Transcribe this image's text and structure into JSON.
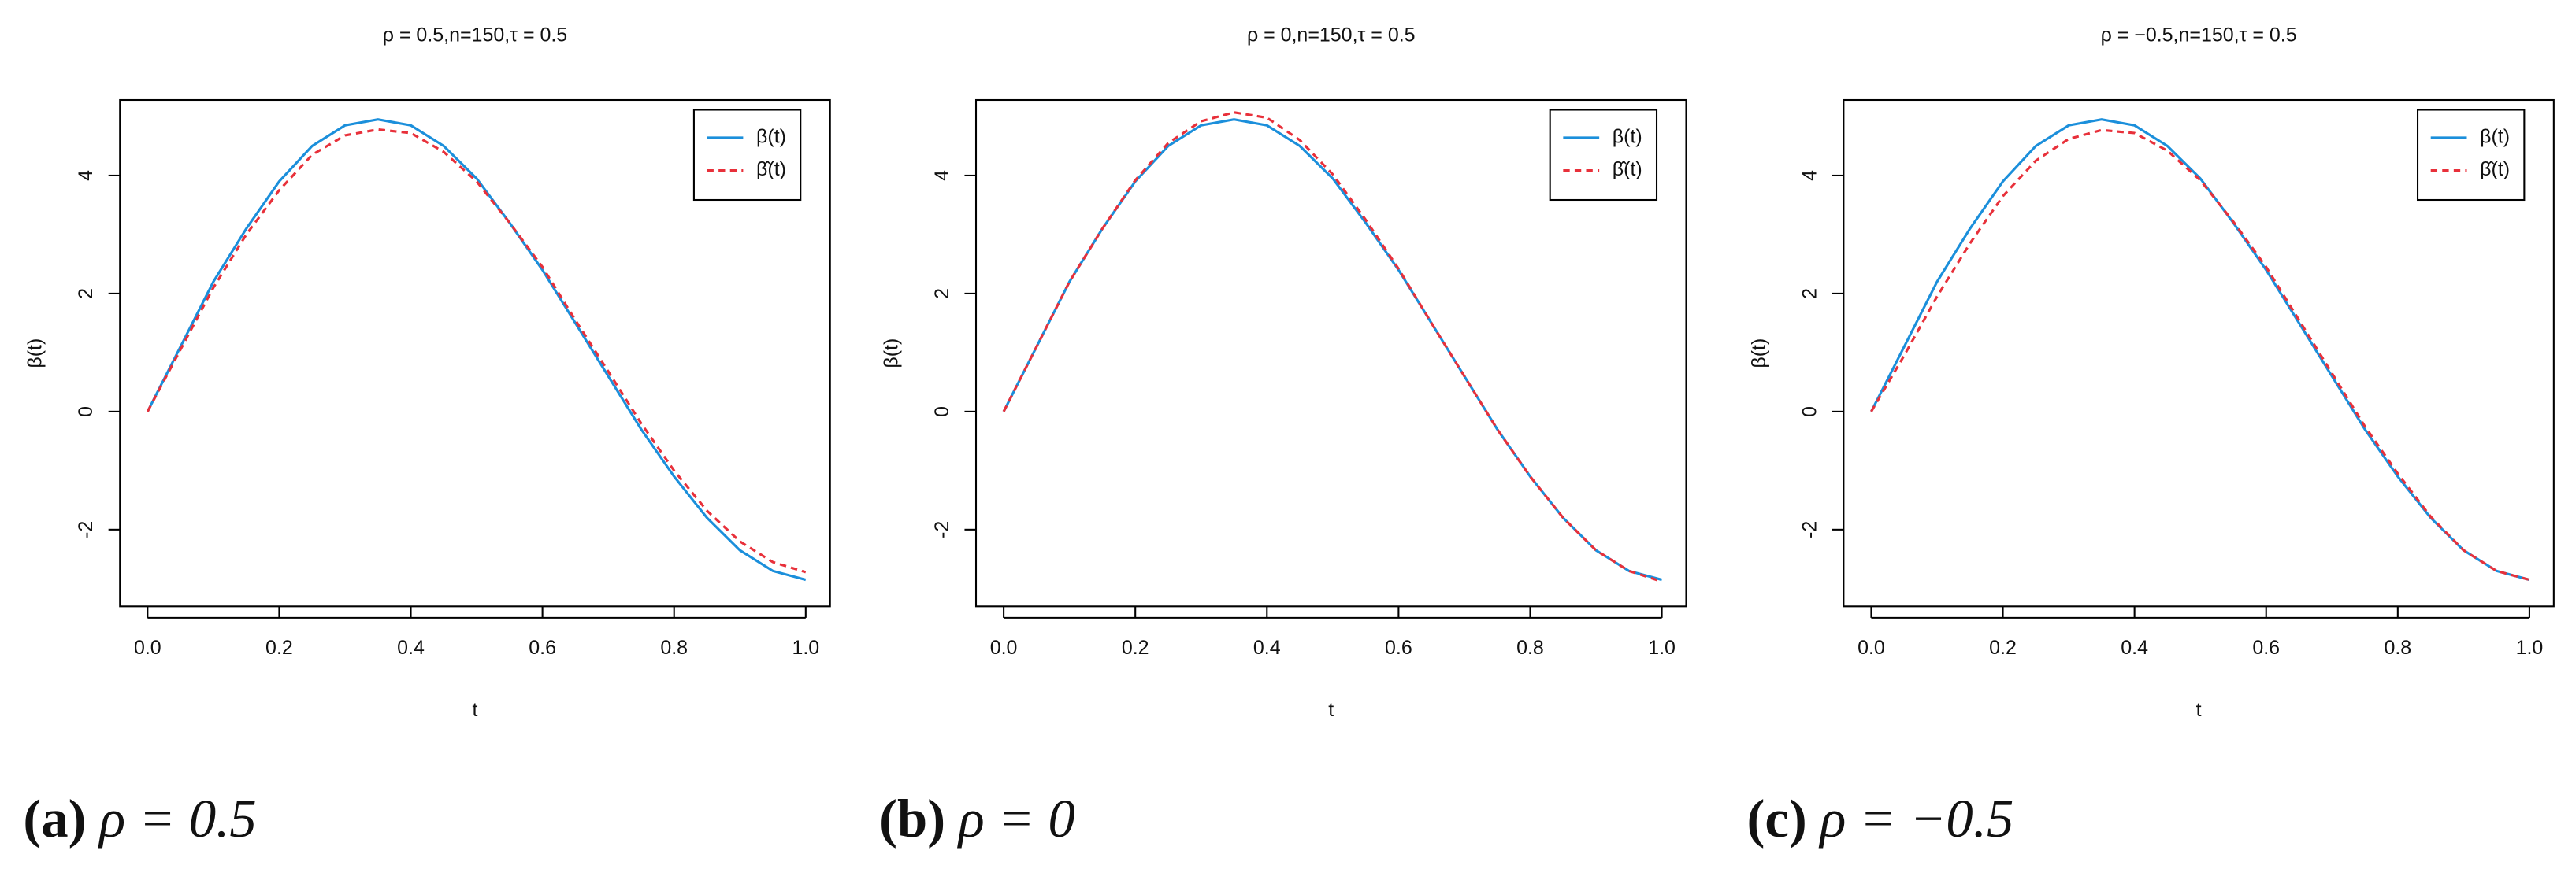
{
  "chart_data": [
    {
      "type": "line",
      "title": "ρ = 0.5,n=150,τ = 0.5",
      "xlabel": "t",
      "ylabel": "β(t)",
      "caption_tag": "(a)",
      "caption_text": "ρ = 0.5",
      "x": [
        0,
        0.05,
        0.1,
        0.15,
        0.2,
        0.25,
        0.3,
        0.35,
        0.4,
        0.45,
        0.5,
        0.55,
        0.6,
        0.65,
        0.7,
        0.75,
        0.8,
        0.85,
        0.9,
        0.95,
        1.0
      ],
      "series": [
        {
          "name": "β(t)",
          "color": "#1b8fdb",
          "dash": false,
          "values": [
            0,
            1.1,
            2.2,
            3.1,
            3.9,
            4.5,
            4.85,
            4.95,
            4.85,
            4.5,
            3.95,
            3.2,
            2.4,
            1.5,
            0.6,
            -0.3,
            -1.1,
            -1.8,
            -2.35,
            -2.7,
            -2.85
          ]
        },
        {
          "name": "β̂(t)",
          "color": "#e8303a",
          "dash": true,
          "values": [
            0,
            1.05,
            2.1,
            3.0,
            3.75,
            4.35,
            4.68,
            4.78,
            4.72,
            4.4,
            3.9,
            3.2,
            2.45,
            1.55,
            0.68,
            -0.2,
            -1.0,
            -1.68,
            -2.2,
            -2.55,
            -2.72
          ]
        }
      ],
      "xlim": [
        -0.042,
        1.037
      ],
      "ylim": [
        -3.3,
        5.28
      ],
      "xticks": [
        {
          "value": 0,
          "label": "0.0"
        },
        0.2,
        0.4,
        0.6,
        0.8,
        {
          "value": 1,
          "label": "1.0"
        }
      ],
      "yticks": [
        -2,
        0,
        2,
        4
      ],
      "legend": "upper right"
    },
    {
      "type": "line",
      "title": "ρ = 0,n=150,τ = 0.5",
      "xlabel": "t",
      "ylabel": "β(t)",
      "caption_tag": "(b)",
      "caption_text": "ρ = 0",
      "x": [
        0,
        0.05,
        0.1,
        0.15,
        0.2,
        0.25,
        0.3,
        0.35,
        0.4,
        0.45,
        0.5,
        0.55,
        0.6,
        0.65,
        0.7,
        0.75,
        0.8,
        0.85,
        0.9,
        0.95,
        1.0
      ],
      "series": [
        {
          "name": "β(t)",
          "color": "#1b8fdb",
          "dash": false,
          "values": [
            0,
            1.1,
            2.2,
            3.1,
            3.9,
            4.5,
            4.85,
            4.95,
            4.85,
            4.5,
            3.95,
            3.2,
            2.4,
            1.5,
            0.6,
            -0.3,
            -1.1,
            -1.8,
            -2.35,
            -2.7,
            -2.85
          ]
        },
        {
          "name": "β̂(t)",
          "color": "#e8303a",
          "dash": true,
          "values": [
            0,
            1.1,
            2.2,
            3.1,
            3.92,
            4.55,
            4.92,
            5.07,
            4.98,
            4.6,
            4.02,
            3.25,
            2.42,
            1.5,
            0.6,
            -0.3,
            -1.1,
            -1.8,
            -2.35,
            -2.7,
            -2.88
          ]
        }
      ],
      "xlim": [
        -0.042,
        1.037
      ],
      "ylim": [
        -3.3,
        5.28
      ],
      "xticks": [
        {
          "value": 0,
          "label": "0.0"
        },
        0.2,
        0.4,
        0.6,
        0.8,
        {
          "value": 1,
          "label": "1.0"
        }
      ],
      "yticks": [
        -2,
        0,
        2,
        4
      ],
      "legend": "upper right"
    },
    {
      "type": "line",
      "title": "ρ = −0.5,n=150,τ = 0.5",
      "xlabel": "t",
      "ylabel": "β(t)",
      "caption_tag": "(c)",
      "caption_text": "ρ = −0.5",
      "x": [
        0,
        0.05,
        0.1,
        0.15,
        0.2,
        0.25,
        0.3,
        0.35,
        0.4,
        0.45,
        0.5,
        0.55,
        0.6,
        0.65,
        0.7,
        0.75,
        0.8,
        0.85,
        0.9,
        0.95,
        1.0
      ],
      "series": [
        {
          "name": "β(t)",
          "color": "#1b8fdb",
          "dash": false,
          "values": [
            0,
            1.1,
            2.2,
            3.1,
            3.9,
            4.5,
            4.85,
            4.95,
            4.85,
            4.5,
            3.95,
            3.2,
            2.4,
            1.5,
            0.6,
            -0.3,
            -1.1,
            -1.8,
            -2.35,
            -2.7,
            -2.85
          ]
        },
        {
          "name": "β̂(t)",
          "color": "#e8303a",
          "dash": true,
          "values": [
            0,
            0.95,
            1.95,
            2.85,
            3.65,
            4.25,
            4.62,
            4.77,
            4.72,
            4.42,
            3.92,
            3.22,
            2.45,
            1.55,
            0.65,
            -0.25,
            -1.05,
            -1.78,
            -2.35,
            -2.7,
            -2.85
          ]
        }
      ],
      "xlim": [
        -0.042,
        1.037
      ],
      "ylim": [
        -3.3,
        5.28
      ],
      "xticks": [
        {
          "value": 0,
          "label": "0.0"
        },
        0.2,
        0.4,
        0.6,
        0.8,
        {
          "value": 1,
          "label": "1.0"
        }
      ],
      "yticks": [
        -2,
        0,
        2,
        4
      ],
      "legend": "upper right"
    }
  ]
}
